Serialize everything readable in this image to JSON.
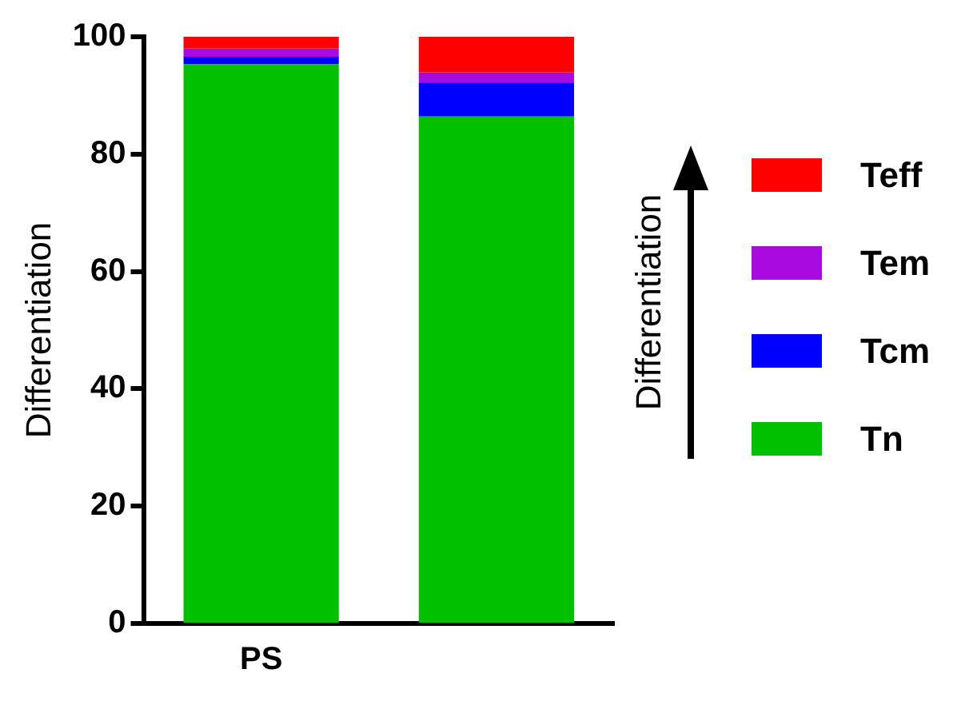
{
  "chart_data": {
    "type": "bar",
    "stacked": true,
    "ylabel": "Differentiation",
    "categories": [
      "PS",
      null
    ],
    "series": [
      {
        "name": "Tn",
        "color": "#00c000",
        "values": [
          95.3,
          86.4
        ]
      },
      {
        "name": "Tcm",
        "color": "#0000ff",
        "values": [
          1.3,
          5.8
        ]
      },
      {
        "name": "Tem",
        "color": "#a80ae0",
        "values": [
          1.4,
          1.7
        ]
      },
      {
        "name": "Teff",
        "color": "#ff0000",
        "values": [
          2.0,
          6.1
        ]
      }
    ],
    "ylim": [
      0,
      100
    ],
    "yticks": [
      0,
      20,
      40,
      60,
      80,
      100
    ],
    "grid": false,
    "legend": "right",
    "annotations": [
      "Differentiation"
    ]
  }
}
